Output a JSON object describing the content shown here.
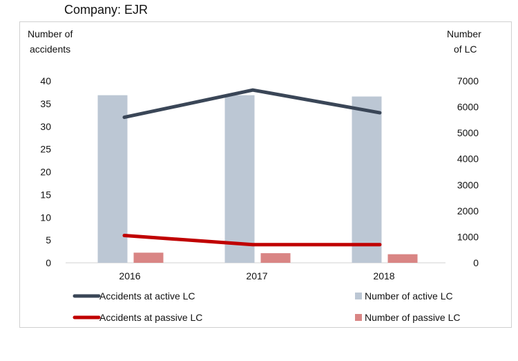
{
  "company_label": "Company: EJR",
  "chart_data": {
    "type": "bar+line",
    "categories": [
      "2016",
      "2017",
      "2018"
    ],
    "left_axis": {
      "label_line1": "Number of",
      "label_line2": "accidents",
      "ylim": [
        0,
        40
      ],
      "ticks": [
        "0",
        "5",
        "10",
        "15",
        "20",
        "25",
        "30",
        "35",
        "40"
      ]
    },
    "right_axis": {
      "label_line1": "Number",
      "label_line2": "of LC",
      "ylim": [
        0,
        7000
      ],
      "ticks": [
        "0",
        "1000",
        "2000",
        "3000",
        "4000",
        "5000",
        "6000",
        "7000"
      ]
    },
    "bar_series": [
      {
        "name": "Number of active LC",
        "color": "#bcc7d4",
        "values": [
          6450,
          6450,
          6400
        ]
      },
      {
        "name": "Number of passive LC",
        "color": "#d98584",
        "values": [
          390,
          370,
          330
        ]
      }
    ],
    "line_series": [
      {
        "name": "Accidents at active LC",
        "color": "#3a4657",
        "values": [
          32,
          38,
          33
        ]
      },
      {
        "name": "Accidents at passive LC",
        "color": "#c00000",
        "values": [
          6,
          4,
          4
        ]
      }
    ],
    "legend_position": "bottom"
  }
}
